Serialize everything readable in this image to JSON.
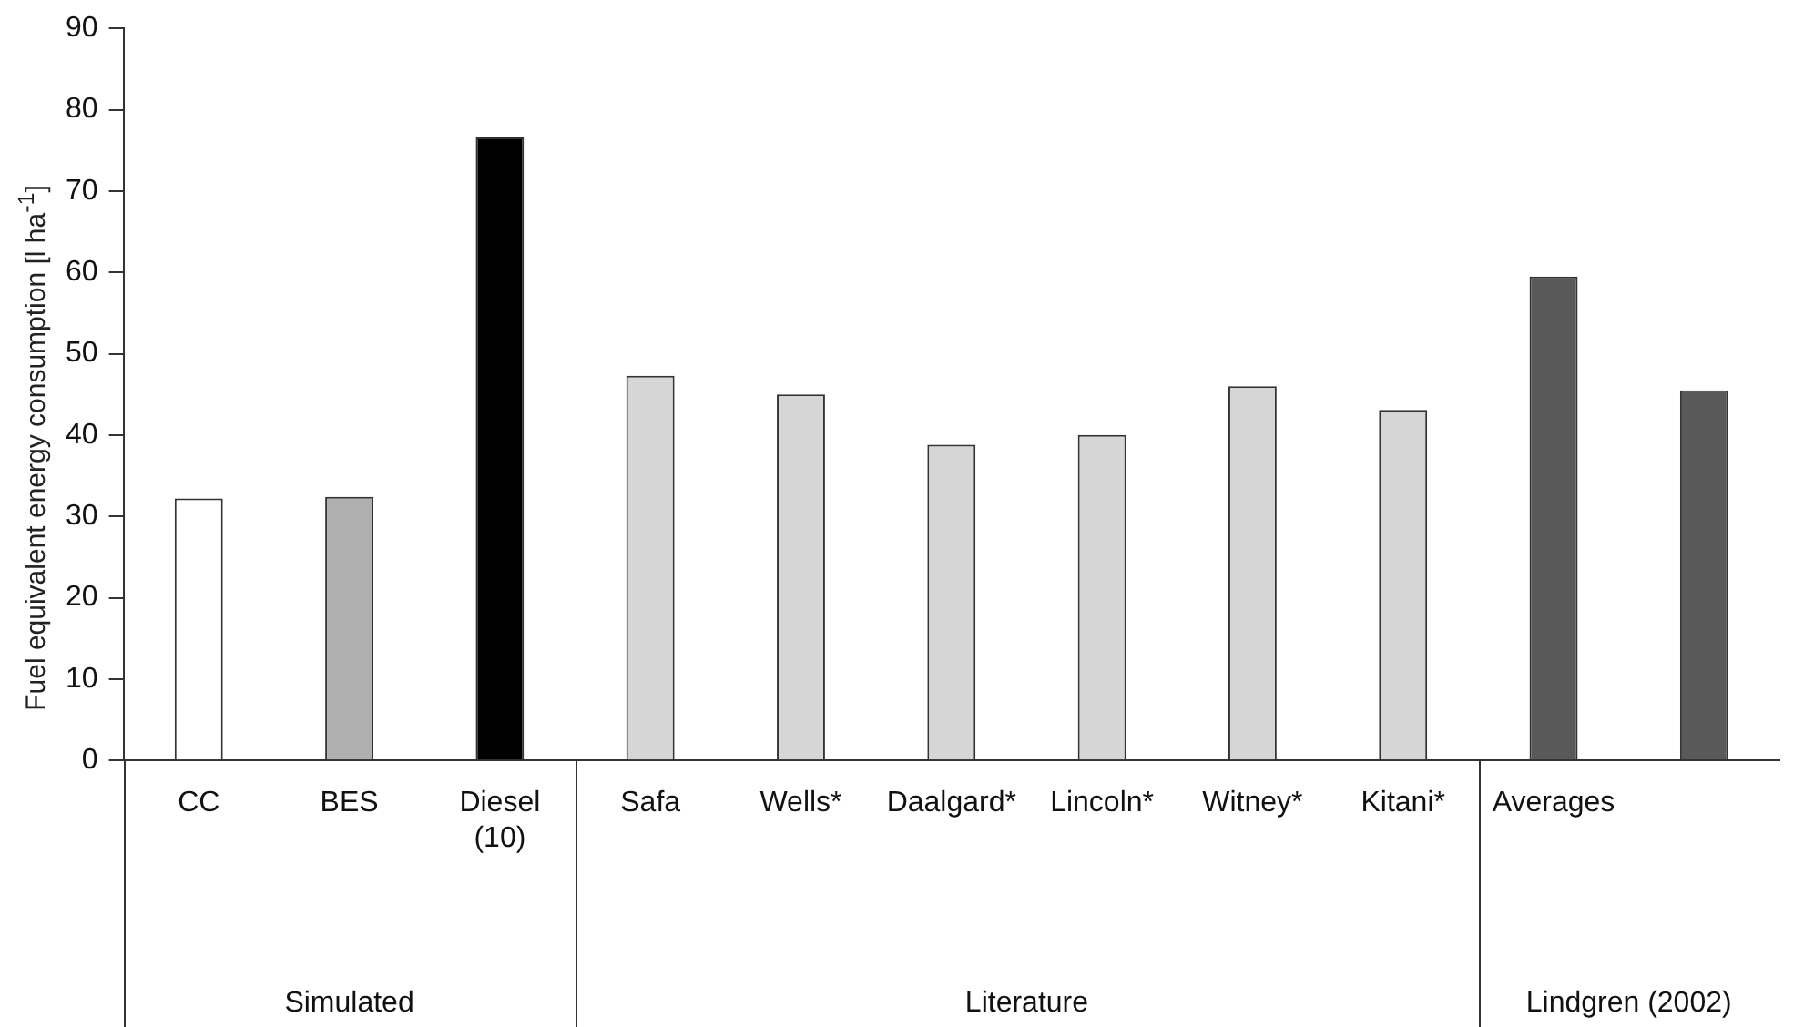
{
  "chart_data": {
    "type": "bar",
    "ylabel": "Fuel equivalent energy consumption [l ha$^{-1}$]",
    "categories": [
      "CC",
      "BES",
      "Diesel\n(10)",
      "Safa",
      "Wells*",
      "Daalgard*",
      "Lincoln*",
      "Witney*",
      "Kitani*",
      "Averages",
      null
    ],
    "values": [
      32.2,
      32.4,
      76.6,
      47.3,
      45.0,
      38.8,
      40.0,
      46.0,
      43.1,
      59.5,
      45.5
    ],
    "colors": [
      "#ffffff",
      "#b0b0b0",
      "#000000",
      "#d6d6d6",
      "#d6d6d6",
      "#d6d6d6",
      "#d6d6d6",
      "#d6d6d6",
      "#d6d6d6",
      "#595959",
      "#595959"
    ],
    "ylim": [
      0,
      90
    ],
    "yticks": [
      0,
      10,
      20,
      30,
      40,
      50,
      60,
      70,
      80,
      90
    ],
    "grid": false,
    "legend": false,
    "annotations": [
      "Simulated",
      "Literature",
      "Lindgren (2002)"
    ]
  }
}
